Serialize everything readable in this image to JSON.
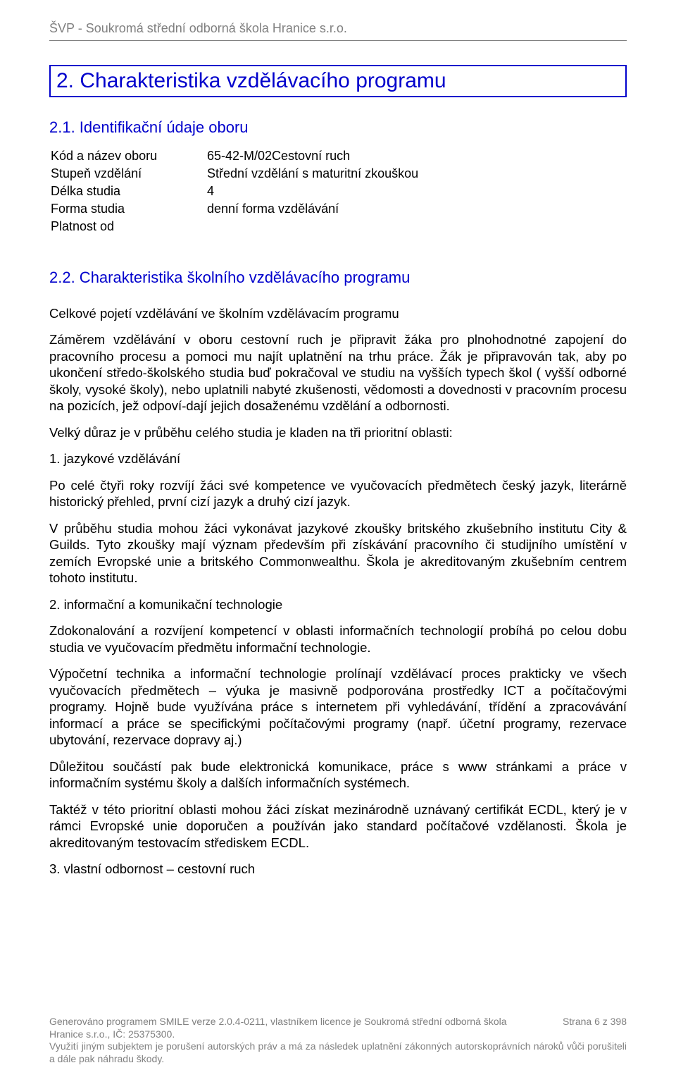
{
  "header": {
    "title": "ŠVP - Soukromá střední odborná škola Hranice s.r.o."
  },
  "section_box": {
    "title": "2. Charakteristika vzdělávacího programu"
  },
  "sub1": {
    "title": "2.1. Identifikační údaje oboru",
    "rows": [
      {
        "label": "Kód a název oboru",
        "value": "65-42-M/02Cestovní ruch"
      },
      {
        "label": "Stupeň vzdělání",
        "value": "Střední vzdělání s maturitní zkouškou"
      },
      {
        "label": "Délka studia",
        "value": "4"
      },
      {
        "label": "Forma studia",
        "value": "denní forma vzdělávání"
      },
      {
        "label": "Platnost od",
        "value": ""
      }
    ]
  },
  "sub2": {
    "title": "2.2. Charakteristika školního vzdělávacího programu",
    "bold_line": "Celkové pojetí vzdělávání ve školním vzdělávacím programu",
    "p1": "Záměrem vzdělávání v oboru cestovní ruch je připravit žáka pro plnohodnotné zapojení do pracovního procesu a pomoci mu najít  uplatnění na trhu práce. Žák je připravován tak, aby po ukončení středo-školského studia buď pokračoval ve studiu na vyšších typech škol ( vyšší odborné školy, vysoké školy), nebo uplatnili nabyté zkušenosti, vědomosti a dovednosti v pracovním procesu na pozicích, jež odpoví-dají jejich dosaženému vzdělání a odbornosti.",
    "p2": "Velký důraz je v průběhu celého studia je kladen na tři prioritní oblasti:",
    "p3": "1. jazykové vzdělávání",
    "p4": "Po celé čtyři roky rozvíjí žáci své kompetence ve vyučovacích předmětech český jazyk, literárně historický přehled, první cizí jazyk a druhý cizí jazyk.",
    "p5": "V průběhu studia mohou žáci vykonávat jazykové zkoušky britského zkušebního institutu City & Guilds. Tyto zkoušky mají význam především při získávání pracovního či studijního umístění v zemích Evropské unie a britského Commonwealthu. Škola je akreditovaným zkušebním centrem tohoto institutu.",
    "p6": "2. informační a komunikační technologie",
    "p7": "Zdokonalování a rozvíjení kompetencí v oblasti informačních technologií probíhá po celou dobu studia ve vyučovacím předmětu informační technologie.",
    "p8": "Výpočetní technika a informační technologie prolínají vzdělávací proces prakticky ve všech vyučovacích předmětech – výuka je masivně podporována prostředky ICT a počítačovými programy. Hojně bude využívána práce s internetem při vyhledávání, třídění a zpracovávání informací a práce se specifickými počítačovými programy  (např. účetní programy, rezervace ubytování, rezervace dopravy aj.)",
    "p9": "Důležitou součástí pak bude elektronická komunikace, práce s  www stránkami a práce v informačním systému školy a dalších informačních systémech.",
    "p10": "Taktéž v této prioritní oblasti mohou žáci získat mezinárodně uznávaný certifikát ECDL, který je v rámci Evropské unie doporučen a používán jako standard počítačové vzdělanosti. Škola je akreditovaným testovacím střediskem ECDL.",
    "p11": "3. vlastní odbornost – cestovní ruch"
  },
  "footer": {
    "line1_left": "Generováno programem SMILE verze 2.0.4-0211, vlastníkem licence je Soukromá střední odborná škola",
    "line1_right": "Strana 6 z 398",
    "line2": "Hranice s.r.o., IČ: 25375300.",
    "line3": "Využití  jiným  subjektem  je  porušení  autorských  práv  a  má  za  následek  uplatnění  zákonných autorskoprávních nároků vůči porušiteli a dále pak náhradu škody."
  }
}
